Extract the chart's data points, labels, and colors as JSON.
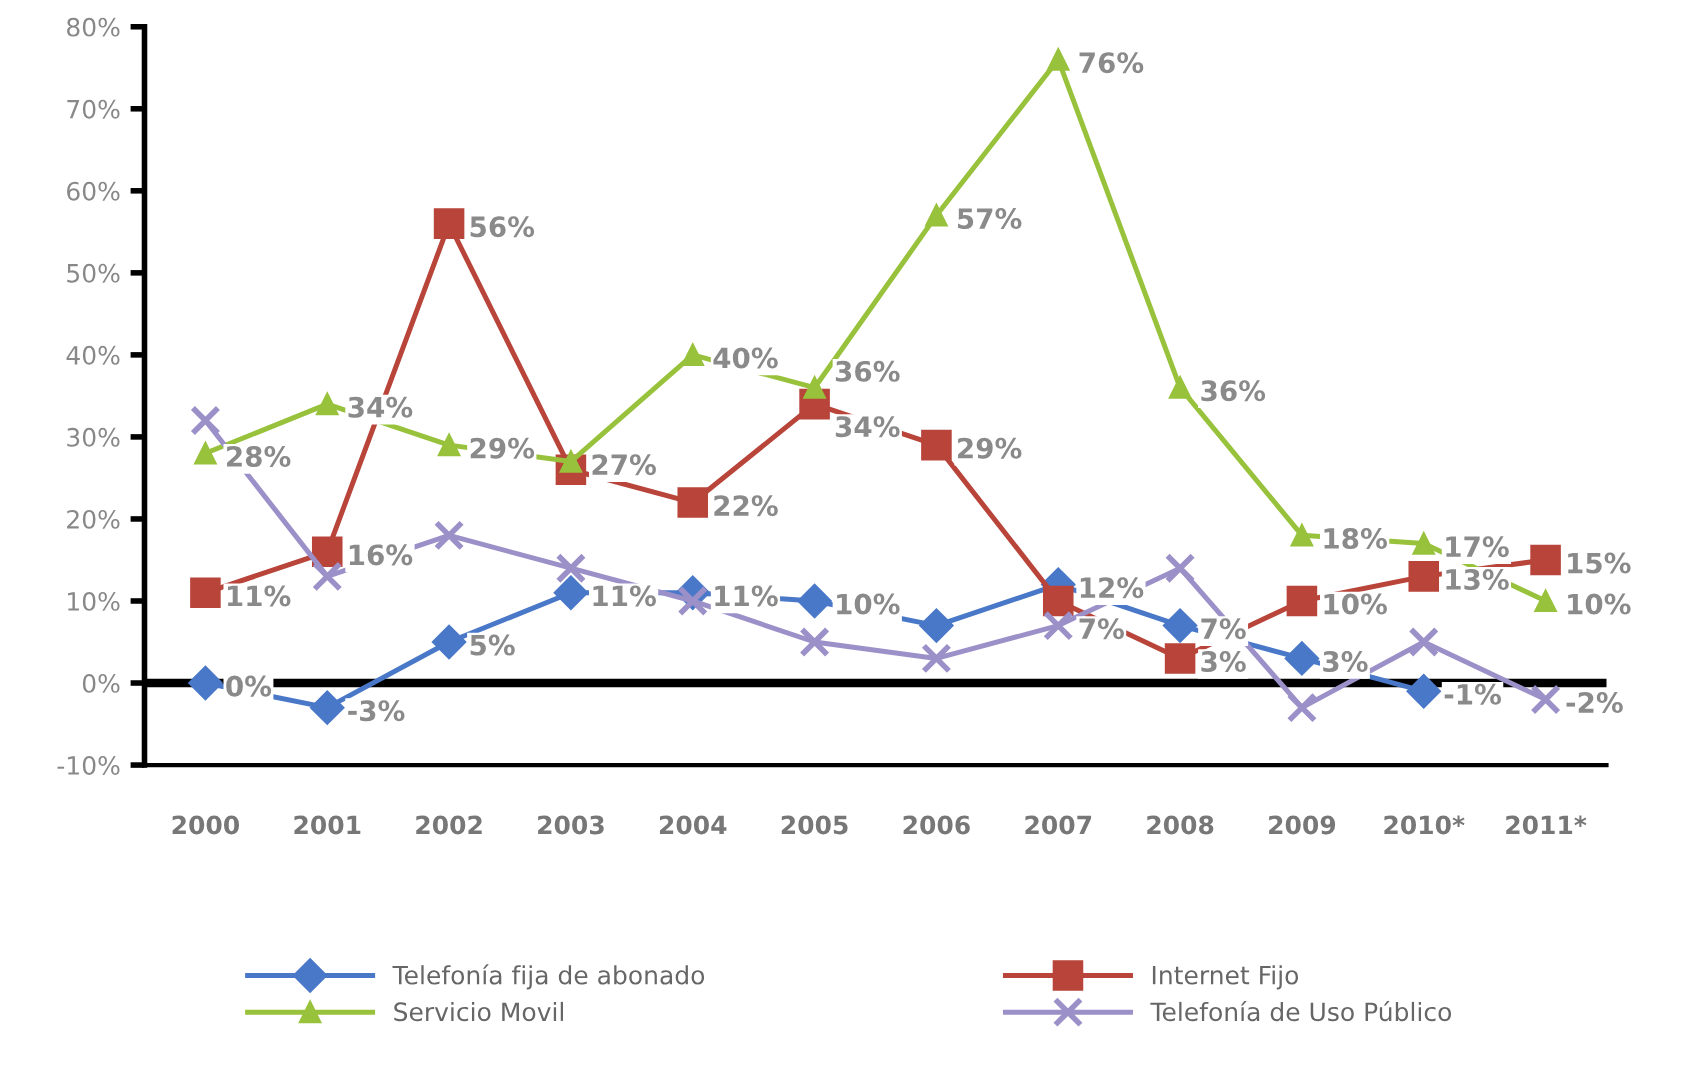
{
  "chart_data": {
    "type": "line",
    "categories": [
      "2000",
      "2001",
      "2002",
      "2003",
      "2004",
      "2005",
      "2006",
      "2007",
      "2008",
      "2009",
      "2010*",
      "2011*"
    ],
    "series": [
      {
        "name": "Telefonía fija de abonado",
        "color": "#4a78c8",
        "marker": "diamond",
        "values": [
          0,
          -3,
          5,
          11,
          11,
          10,
          7,
          12,
          7,
          3,
          -1,
          null
        ],
        "value_labels": [
          "0%",
          "-3%",
          "5%",
          "11%",
          "11%",
          "10%",
          null,
          "12%",
          "7%",
          "3%",
          "-1%",
          null
        ]
      },
      {
        "name": "Internet Fijo",
        "color": "#b8443a",
        "marker": "square",
        "values": [
          11,
          16,
          56,
          26,
          22,
          34,
          29,
          10,
          3,
          10,
          13,
          15
        ],
        "value_labels": [
          "11%",
          "16%",
          "56%",
          null,
          "22%",
          "34%",
          "29%",
          null,
          "3%",
          "10%",
          "13%",
          "15%"
        ]
      },
      {
        "name": "Servicio Movil",
        "color": "#98c23c",
        "marker": "triangle",
        "values": [
          28,
          34,
          29,
          27,
          40,
          36,
          57,
          76,
          36,
          18,
          17,
          10
        ],
        "value_labels": [
          "28%",
          "34%",
          "29%",
          "27%",
          "40%",
          "36%",
          "57%",
          "76%",
          "36%",
          "18%",
          "17%",
          "10%"
        ]
      },
      {
        "name": "Telefonía de Uso Público",
        "color": "#9c90c8",
        "marker": "cross",
        "values": [
          32,
          13,
          18,
          14,
          10,
          5,
          3,
          7,
          14,
          -3,
          5,
          -2
        ],
        "value_labels": [
          null,
          null,
          null,
          null,
          null,
          null,
          null,
          "7%",
          null,
          null,
          null,
          "-2%"
        ]
      }
    ],
    "ylim": [
      -10,
      80
    ],
    "yticks": [
      {
        "value": -10,
        "label": "-10%"
      },
      {
        "value": 0,
        "label": "0%"
      },
      {
        "value": 10,
        "label": "10%"
      },
      {
        "value": 20,
        "label": "20%"
      },
      {
        "value": 30,
        "label": "30%"
      },
      {
        "value": 40,
        "label": "40%"
      },
      {
        "value": 50,
        "label": "50%"
      },
      {
        "value": 60,
        "label": "60%"
      },
      {
        "value": 70,
        "label": "70%"
      },
      {
        "value": 80,
        "label": "80%"
      }
    ],
    "ref_lines": [
      {
        "axis": "y",
        "value": 0,
        "color": "#000000"
      }
    ],
    "grid": false,
    "legend": "bottom",
    "line_style": "solid"
  }
}
